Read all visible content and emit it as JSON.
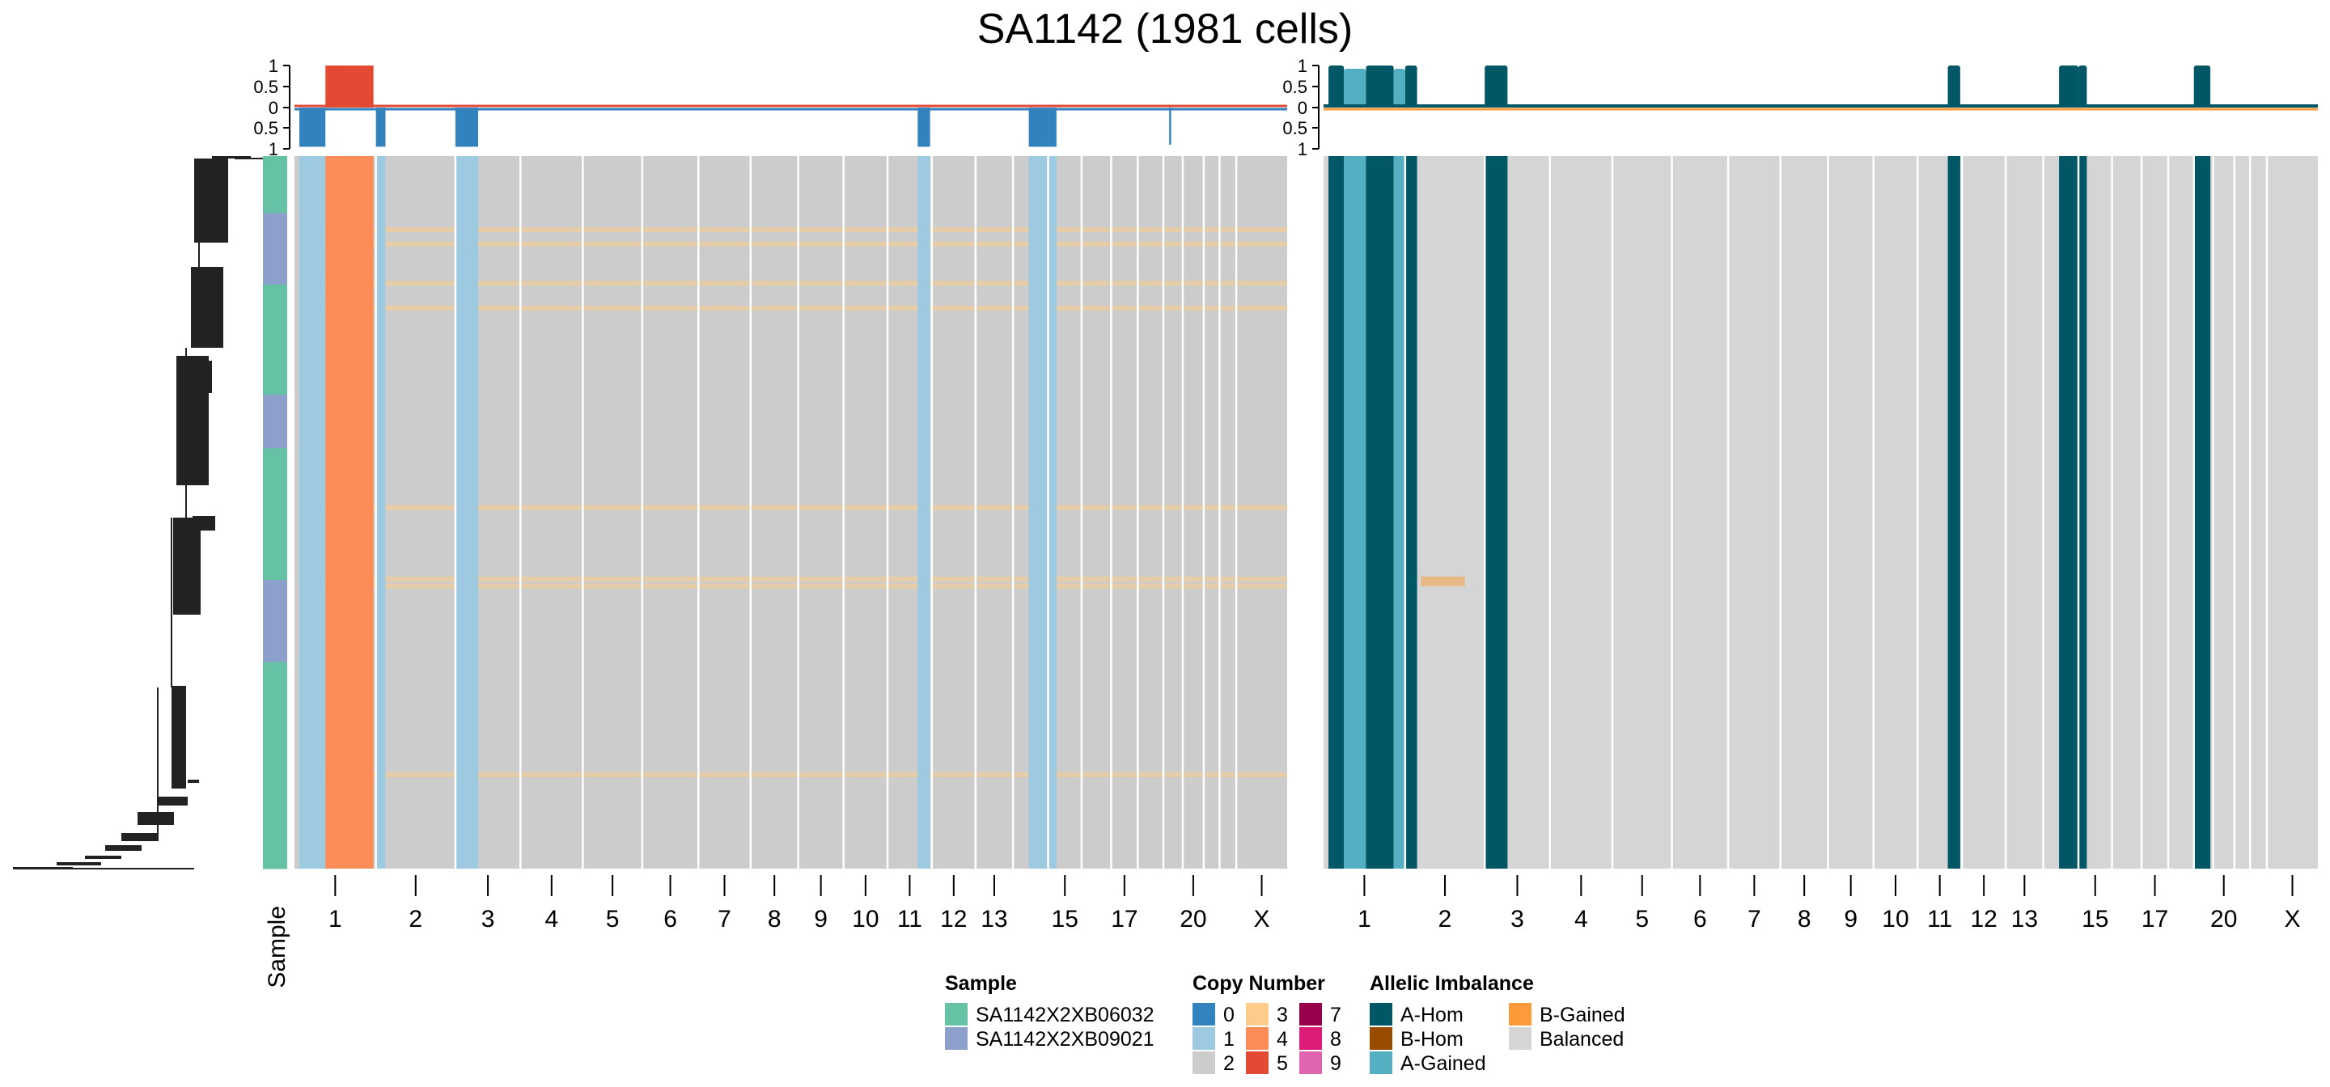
{
  "title": "SA1142 (1981 cells)",
  "colors": {
    "cn": {
      "0": "#3182bd",
      "1": "#9ecae1",
      "2": "#cccccc",
      "3": "#fdcc8a",
      "4": "#fc8d59",
      "5": "#e34a33",
      "7": "#99004c",
      "8": "#dd1c77",
      "9": "#df65b0"
    },
    "ai": {
      "A-Hom": "#025767",
      "B-Hom": "#994c00",
      "A-Gained": "#53afc1",
      "B-Gained": "#fd9b3a",
      "Balanced": "#d5d5d5"
    },
    "sample": {
      "SA1142X2XB06032": "#66c2a5",
      "SA1142X2XB09021": "#8da0cb"
    },
    "separator": "#ffffff"
  },
  "chart_data": [
    {
      "type": "heatmap",
      "panel": "copy-number",
      "chromosomes": [
        "1",
        "2",
        "3",
        "4",
        "5",
        "6",
        "7",
        "8",
        "9",
        "10",
        "11",
        "12",
        "13",
        "14",
        "15",
        "16",
        "17",
        "18",
        "19",
        "20",
        "21",
        "22",
        "X"
      ],
      "tick_labels": [
        "1",
        "2",
        "3",
        "4",
        "5",
        "6",
        "7",
        "8",
        "9",
        "10",
        "11",
        "12",
        "13",
        "15",
        "17",
        "20",
        "X"
      ],
      "row_annotation_label": "Sample",
      "row_annotation": [
        {
          "sample": "SA1142X2XB06032",
          "fraction": 0.08
        },
        {
          "sample": "SA1142X2XB09021",
          "fraction": 0.1
        },
        {
          "sample": "SA1142X2XB06032",
          "fraction": 0.155
        },
        {
          "sample": "SA1142X2XB09021",
          "fraction": 0.075
        },
        {
          "sample": "SA1142X2XB06032",
          "fraction": 0.185
        },
        {
          "sample": "SA1142X2XB09021",
          "fraction": 0.115
        },
        {
          "sample": "SA1142X2XB06032",
          "fraction": 0.29
        }
      ],
      "dominant_state_segments": [
        {
          "chr": "1",
          "start": 0,
          "end": 0.06,
          "state": "2"
        },
        {
          "chr": "1",
          "start": 0.06,
          "end": 0.38,
          "state": "1"
        },
        {
          "chr": "1",
          "start": 0.38,
          "end": 0.97,
          "state": "4"
        },
        {
          "chr": "2",
          "start": 0,
          "end": 0.12,
          "state": "1"
        },
        {
          "chr": "3",
          "start": 0,
          "end": 0.35,
          "state": "1"
        },
        {
          "chr": "11",
          "start": 0.68,
          "end": 0.96,
          "state": "1"
        },
        {
          "chr": "14",
          "start": 0.45,
          "end": 1,
          "state": "1"
        },
        {
          "chr": "15",
          "start": 0,
          "end": 0.25,
          "state": "1"
        }
      ],
      "faint_rows": [
        {
          "row": 0.1,
          "state": "3"
        },
        {
          "row": 0.12,
          "state": "3"
        },
        {
          "row": 0.175,
          "state": "3"
        },
        {
          "row": 0.21,
          "state": "3"
        },
        {
          "row": 0.49,
          "state": "3"
        },
        {
          "row": 0.59,
          "state": "3"
        },
        {
          "row": 0.6,
          "state": "3"
        },
        {
          "row": 0.865,
          "state": "3"
        }
      ],
      "frequency_track": {
        "ylim": [
          -1,
          1
        ],
        "yticks": [
          "1",
          "0.5",
          "0",
          "0.5",
          "1"
        ],
        "gain": [
          {
            "chr": "1",
            "start": 0.38,
            "end": 0.97,
            "value": 1
          }
        ],
        "loss": [
          {
            "chr": "1",
            "start": 0.06,
            "end": 0.38,
            "value": 0.95
          },
          {
            "chr": "2",
            "start": 0,
            "end": 0.12,
            "value": 0.95
          },
          {
            "chr": "3",
            "start": 0,
            "end": 0.35,
            "value": 0.95
          },
          {
            "chr": "11",
            "start": 0.68,
            "end": 0.96,
            "value": 0.95
          },
          {
            "chr": "14",
            "start": 0.45,
            "end": 1,
            "value": 0.95
          },
          {
            "chr": "15",
            "start": 0,
            "end": 0.25,
            "value": 0.95
          },
          {
            "chr": "19",
            "start": 0.3,
            "end": 0.4,
            "value": 0.9
          }
        ]
      }
    },
    {
      "type": "heatmap",
      "panel": "allelic-imbalance",
      "chromosomes": [
        "1",
        "2",
        "3",
        "4",
        "5",
        "6",
        "7",
        "8",
        "9",
        "10",
        "11",
        "12",
        "13",
        "14",
        "15",
        "16",
        "17",
        "18",
        "19",
        "20",
        "21",
        "22",
        "X"
      ],
      "tick_labels": [
        "1",
        "2",
        "3",
        "4",
        "5",
        "6",
        "7",
        "8",
        "9",
        "10",
        "11",
        "12",
        "13",
        "15",
        "17",
        "20",
        "X"
      ],
      "dominant_state_segments": [
        {
          "chr": "1",
          "start": 0.06,
          "end": 0.25,
          "state": "A-Hom"
        },
        {
          "chr": "1",
          "start": 0.25,
          "end": 0.52,
          "state": "A-Gained"
        },
        {
          "chr": "1",
          "start": 0.52,
          "end": 0.86,
          "state": "A-Hom"
        },
        {
          "chr": "1",
          "start": 0.86,
          "end": 1,
          "state": "A-Gained"
        },
        {
          "chr": "2",
          "start": 0,
          "end": 0.15,
          "state": "A-Hom"
        },
        {
          "chr": "3",
          "start": 0,
          "end": 0.35,
          "state": "A-Hom"
        },
        {
          "chr": "11",
          "start": 0.68,
          "end": 0.96,
          "state": "A-Hom"
        },
        {
          "chr": "14",
          "start": 0.45,
          "end": 1,
          "state": "A-Hom"
        },
        {
          "chr": "15",
          "start": 0,
          "end": 0.25,
          "state": "A-Hom"
        },
        {
          "chr": "19",
          "start": 0,
          "end": 0.85,
          "state": "A-Hom"
        }
      ],
      "faint_rows": [
        {
          "chr": "2",
          "row": 0.59,
          "state": "B-Gained"
        }
      ],
      "frequency_track": {
        "ylim": [
          -1,
          1
        ],
        "yticks": [
          "1",
          "0.5",
          "0",
          "0.5",
          "1"
        ]
      }
    }
  ],
  "legends": {
    "sample": {
      "title": "Sample",
      "items": [
        {
          "label": "SA1142X2XB06032",
          "color": "#66c2a5"
        },
        {
          "label": "SA1142X2XB09021",
          "color": "#8da0cb"
        }
      ]
    },
    "copy_number": {
      "title": "Copy Number",
      "items": [
        {
          "label": "0",
          "color": "#3182bd"
        },
        {
          "label": "1",
          "color": "#9ecae1"
        },
        {
          "label": "2",
          "color": "#cccccc"
        },
        {
          "label": "3",
          "color": "#fdcc8a"
        },
        {
          "label": "4",
          "color": "#fc8d59"
        },
        {
          "label": "5",
          "color": "#e34a33"
        },
        {
          "label": "7",
          "color": "#99004c"
        },
        {
          "label": "8",
          "color": "#dd1c77"
        },
        {
          "label": "9",
          "color": "#df65b0"
        }
      ]
    },
    "allelic_imbalance": {
      "title": "Allelic Imbalance",
      "items": [
        {
          "label": "A-Hom",
          "color": "#025767"
        },
        {
          "label": "B-Hom",
          "color": "#994c00"
        },
        {
          "label": "A-Gained",
          "color": "#53afc1"
        },
        {
          "label": "B-Gained",
          "color": "#fd9b3a"
        },
        {
          "label": "Balanced",
          "color": "#d5d5d5"
        }
      ]
    }
  }
}
